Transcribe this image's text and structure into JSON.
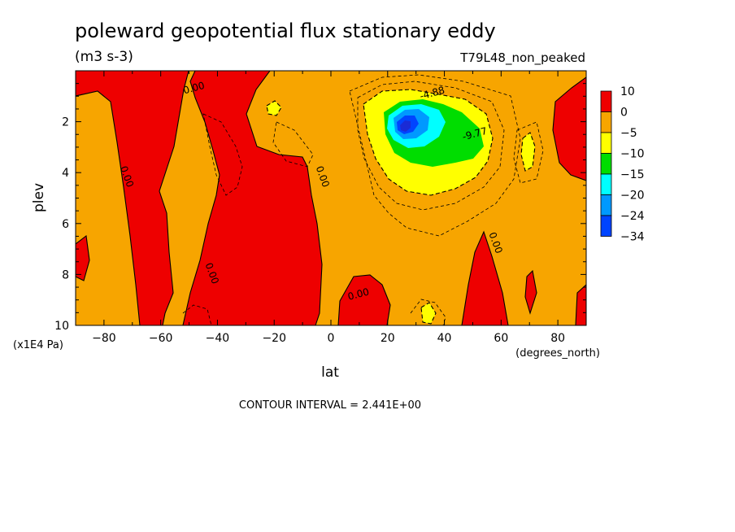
{
  "chart_data": {
    "type": "heatmap",
    "title": "poleward geopotential flux stationary eddy",
    "units": "(m3 s-3)",
    "run_label": "T79L48_non_peaked",
    "xlabel": "lat",
    "x_units": "(degrees_north)",
    "ylabel": "plev",
    "y_units": "(x1E4 Pa)",
    "xlim": [
      -90,
      90
    ],
    "ylim": [
      10,
      0
    ],
    "x_ticks": [
      -80,
      -60,
      -40,
      -20,
      0,
      20,
      40,
      60,
      80
    ],
    "y_ticks": [
      2,
      4,
      6,
      8,
      10
    ],
    "contour_interval_text": "CONTOUR INTERVAL = 2.441E+00",
    "contour_labels": [
      {
        "text": "0.00",
        "lat": -48,
        "plev": 0.8
      },
      {
        "text": "0.00",
        "lat": -73,
        "plev": 4.2
      },
      {
        "text": "0.00",
        "lat": -4,
        "plev": 4.2
      },
      {
        "text": "0.00",
        "lat": -43,
        "plev": 8.0
      },
      {
        "text": "0.00",
        "lat": 57,
        "plev": 6.8
      },
      {
        "text": "0.00",
        "lat": 10,
        "plev": 8.9
      },
      {
        "text": "-4.88",
        "lat": 36,
        "plev": 1.0
      },
      {
        "text": "-9.77",
        "lat": 51,
        "plev": 2.6
      }
    ],
    "legend": {
      "placement": "right",
      "levels": [
        {
          "label": "10",
          "color": "#ee0000"
        },
        {
          "label": "0",
          "color": "#f7a500"
        },
        {
          "label": "-5",
          "color": "#ffff00"
        },
        {
          "label": "-10",
          "color": "#00dd00"
        },
        {
          "label": "-15",
          "color": "#00ffff"
        },
        {
          "label": "-20",
          "color": "#0099ff"
        },
        {
          "label": "-24",
          "color": "#0044ff"
        },
        {
          "label": "-34",
          "color": ""
        }
      ]
    },
    "features": [
      {
        "sign": "positive",
        "value_range": [
          0,
          10
        ],
        "lat_range": [
          -70,
          -55
        ],
        "plev_range": [
          0.2,
          10
        ]
      },
      {
        "sign": "positive",
        "value_range": [
          0,
          10
        ],
        "lat_range": [
          -40,
          -5
        ],
        "plev_range": [
          0.2,
          10
        ]
      },
      {
        "sign": "negative",
        "value_range": [
          -34,
          -5
        ],
        "lat_range": [
          20,
          55
        ],
        "plev_range": [
          1.0,
          4.8
        ],
        "min_lat": 26,
        "min_plev": 2.4
      }
    ]
  }
}
